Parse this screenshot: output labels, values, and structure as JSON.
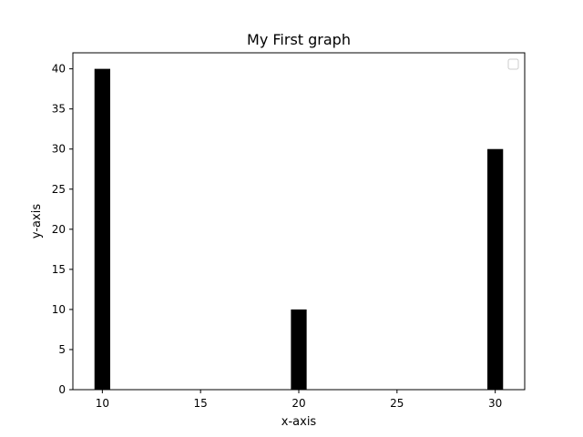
{
  "chart_data": {
    "type": "bar",
    "title": "My First graph",
    "xlabel": "x-axis",
    "ylabel": "y-axis",
    "x": [
      10,
      20,
      30
    ],
    "values": [
      40,
      10,
      30
    ],
    "bar_width": 0.8,
    "xlim": [
      8.5,
      31.5
    ],
    "ylim": [
      0,
      42
    ],
    "xticks": [
      10,
      15,
      20,
      25,
      30
    ],
    "yticks": [
      0,
      5,
      10,
      15,
      20,
      25,
      30,
      35,
      40
    ],
    "grid": false,
    "legend": {
      "placement": "top-right",
      "entries": []
    },
    "colors": {
      "bar": "#000000",
      "axes": "#000000",
      "legend_border": "#cccccc"
    }
  }
}
